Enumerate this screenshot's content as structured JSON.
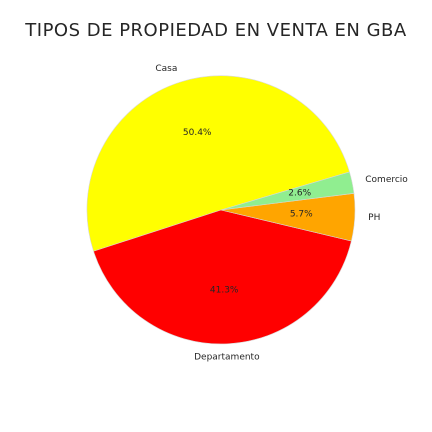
{
  "chart_data": {
    "type": "pie",
    "title": "TIPOS DE PROPIEDAD EN VENTA EN GBA",
    "slices": [
      {
        "label": "Casa",
        "value": 50.4,
        "pct_label": "50.4%",
        "color": "#FFFF00"
      },
      {
        "label": "Departamento",
        "value": 41.3,
        "pct_label": "41.3%",
        "color": "#FF0000"
      },
      {
        "label": "PH",
        "value": 5.7,
        "pct_label": "5.7%",
        "color": "#FFA500"
      },
      {
        "label": "Comercio",
        "value": 2.6,
        "pct_label": "2.6%",
        "color": "#90EE90"
      }
    ],
    "start_angle_deg": 16.5,
    "direction": "counterclockwise",
    "edge_color": "#d9d9d9"
  }
}
